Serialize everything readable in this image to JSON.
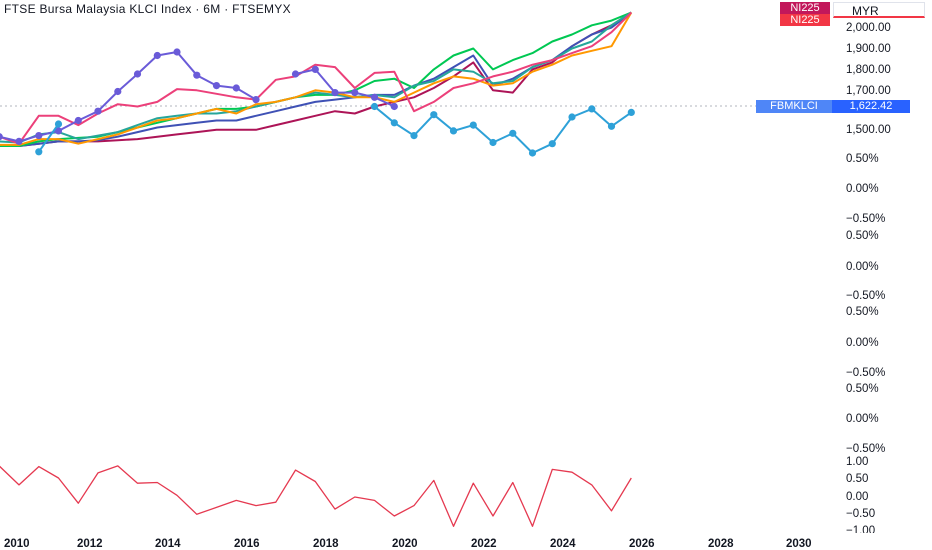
{
  "header": {
    "title": "FTSE Bursa Malaysia KLCI Index · 6M · FTSEMYX",
    "symbol_tags": [
      {
        "label": "NI225",
        "color": "#c2185b"
      },
      {
        "label": "NI225",
        "color": "#f23645"
      }
    ],
    "currency": "MYR"
  },
  "price_tag": {
    "symbol": "FBMKLCI",
    "value": "1,622.42",
    "color": "#2962ff"
  },
  "y_axis": {
    "price_ticks": [
      "2,000.00",
      "1,900.00",
      "1,800.00",
      "1,700.00",
      "1,500.00"
    ],
    "pane1_ticks": [
      "0.50%",
      "0.00%",
      "−0.50%"
    ],
    "pane2_ticks": [
      "0.50%",
      "0.00%",
      "−0.50%"
    ],
    "pane3_ticks": [
      "0.50%",
      "0.00%",
      "−0.50%"
    ],
    "osc_ticks": [
      "1.00",
      "0.50",
      "0.00",
      "−0.50",
      "−1.00"
    ]
  },
  "x_axis": {
    "ticks": [
      "2010",
      "2012",
      "2014",
      "2016",
      "2018",
      "2020",
      "2022",
      "2024",
      "2026",
      "2028",
      "2030"
    ]
  },
  "chart_data": [
    {
      "type": "line",
      "title": "FTSE Bursa Malaysia KLCI Index · 6M · FTSEMYX",
      "ylim": [
        1440,
        2060
      ],
      "x": [
        2009.5,
        2010,
        2010.5,
        2011,
        2011.5,
        2012,
        2012.5,
        2013,
        2013.5,
        2014,
        2014.5,
        2015,
        2015.5,
        2016,
        2016.5,
        2017,
        2017.5,
        2018,
        2018.5,
        2019,
        2019.5,
        2020,
        2020.5,
        2021,
        2021.5,
        2022,
        2022.5,
        2023,
        2023.5,
        2024,
        2024.5,
        2025,
        2025.5
      ],
      "series": [
        {
          "name": "FBMKLCI",
          "color": "#2ea1d8",
          "values": [
            null,
            null,
            1445,
            1565,
            null,
            null,
            null,
            null,
            null,
            null,
            null,
            null,
            null,
            null,
            null,
            null,
            null,
            null,
            null,
            1640,
            1570,
            1515,
            1605,
            1535,
            1560,
            1485,
            1525,
            1440,
            1480,
            1595,
            1630,
            1555,
            1615
          ]
        },
        {
          "color": "#6a5bd8",
          "values": [
            1510,
            1490,
            1515,
            1535,
            1580,
            1620,
            1705,
            1780,
            1860,
            1875,
            1775,
            1730,
            1720,
            1670,
            null,
            1780,
            1800,
            1700,
            1700,
            1680,
            1640,
            null,
            null,
            null,
            null,
            null,
            null,
            null,
            null,
            null,
            null,
            null,
            null
          ]
        },
        {
          "color": "#ec407a",
          "values": [
            1510,
            1480,
            1600,
            1600,
            1560,
            1610,
            1650,
            1640,
            1660,
            1715,
            1710,
            1695,
            1680,
            1670,
            1755,
            1770,
            1820,
            1810,
            1720,
            1785,
            1790,
            1620,
            1660,
            1720,
            1740,
            1770,
            1790,
            1820,
            1840,
            1870,
            1900,
            1960,
            2045
          ]
        },
        {
          "color": "#ff9800",
          "values": [
            1475,
            1475,
            1500,
            1500,
            1480,
            1500,
            1520,
            1550,
            1580,
            1590,
            1610,
            1630,
            1610,
            1650,
            1660,
            1680,
            1710,
            1700,
            1680,
            1680,
            1660,
            1700,
            1740,
            1770,
            1760,
            1730,
            1740,
            1790,
            1820,
            1860,
            1880,
            1900,
            2045
          ]
        },
        {
          "color": "#26a69a",
          "values": [
            1490,
            1485,
            1520,
            1530,
            1500,
            1515,
            1530,
            1560,
            1590,
            1600,
            1610,
            1610,
            1620,
            1640,
            1660,
            1680,
            1700,
            1690,
            1680,
            1690,
            1680,
            1730,
            1750,
            1800,
            1790,
            1740,
            1750,
            1810,
            1840,
            1890,
            1920,
            1990,
            2045
          ]
        },
        {
          "color": "#00c853",
          "values": [
            1470,
            1470,
            1490,
            1500,
            1505,
            1510,
            1530,
            1550,
            1570,
            1590,
            1610,
            1630,
            1630,
            1640,
            1660,
            1680,
            1690,
            1690,
            1710,
            1750,
            1760,
            1720,
            1800,
            1860,
            1890,
            1800,
            1840,
            1870,
            1920,
            1950,
            1990,
            2010,
            2045
          ]
        },
        {
          "color": "#3f51b5",
          "values": [
            1470,
            1470,
            1480,
            1490,
            1490,
            1495,
            1510,
            1530,
            1550,
            1560,
            1570,
            1580,
            1580,
            1600,
            1620,
            1640,
            1660,
            1670,
            1680,
            1690,
            1690,
            1730,
            1760,
            1810,
            1860,
            1730,
            1760,
            1810,
            1840,
            1900,
            1950,
            1980,
            2045
          ]
        },
        {
          "color": "#ad1457",
          "values": [
            1470,
            1470,
            1480,
            1490,
            1490,
            1490,
            1495,
            1500,
            1510,
            1520,
            1530,
            1540,
            1540,
            1540,
            1560,
            1580,
            1600,
            1620,
            1610,
            1640,
            1660,
            1680,
            1720,
            1770,
            1830,
            1710,
            1700,
            1800,
            1830,
            1900,
            1950,
            1990,
            2045
          ]
        }
      ]
    },
    {
      "type": "line",
      "ylim": [
        -1.1,
        1.1
      ],
      "x": [
        2009.5,
        2010,
        2010.5,
        2011,
        2011.5,
        2012,
        2012.5,
        2013,
        2013.5,
        2014,
        2014.5,
        2015,
        2015.5,
        2016,
        2016.5,
        2017,
        2017.5,
        2018,
        2018.5,
        2019,
        2019.5,
        2020,
        2020.5,
        2021,
        2021.5,
        2022,
        2022.5,
        2023,
        2023.5,
        2024,
        2024.5,
        2025,
        2025.5
      ],
      "series": [
        {
          "color": "#e53950",
          "values": [
            0.9,
            0.35,
            0.88,
            0.55,
            -0.18,
            0.7,
            0.9,
            0.4,
            0.42,
            0.05,
            -0.5,
            -0.3,
            -0.1,
            -0.25,
            -0.15,
            0.78,
            0.45,
            -0.35,
            0.0,
            -0.1,
            -0.55,
            -0.25,
            0.48,
            -0.85,
            0.4,
            -0.55,
            0.42,
            -0.85,
            0.8,
            0.72,
            0.35,
            -0.4,
            0.55
          ]
        }
      ]
    }
  ]
}
